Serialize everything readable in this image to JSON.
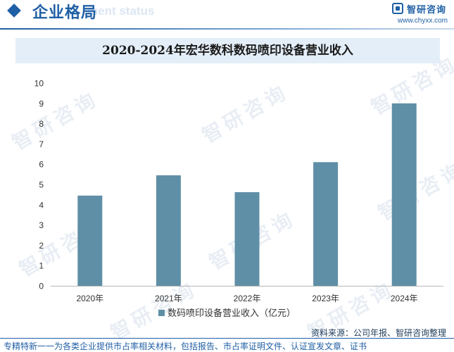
{
  "header": {
    "section_title": "企业格局",
    "section_subtitle_en": "ment status",
    "logo_text": "智研咨询",
    "logo_url": "www.chyxx.com"
  },
  "watermark_text": "智研咨询",
  "chart_data": {
    "type": "bar",
    "title": "2020-2024年宏华数科数码喷印设备营业收入",
    "categories": [
      "2020年",
      "2021年",
      "2022年",
      "2023年",
      "2024年"
    ],
    "series": [
      {
        "name": "数码喷印设备营业收入（亿元）",
        "values": [
          4.45,
          5.45,
          4.62,
          6.1,
          9.0
        ]
      }
    ],
    "ylim": [
      0,
      10
    ],
    "yticks": [
      0,
      1,
      2,
      3,
      4,
      5,
      6,
      7,
      8,
      9,
      10
    ],
    "xlabel": "",
    "ylabel": "",
    "grid": false,
    "legend": "bottom",
    "colors": {
      "bar": "#5f8fa6",
      "axis": "#b8b8b8"
    }
  },
  "source": "资料来源：公司年报、智研咨询整理",
  "footer": "专精特新一一为各类企业提供市占率相关材料，包括报告、市占率证明文件、认证宣发文章、证书"
}
